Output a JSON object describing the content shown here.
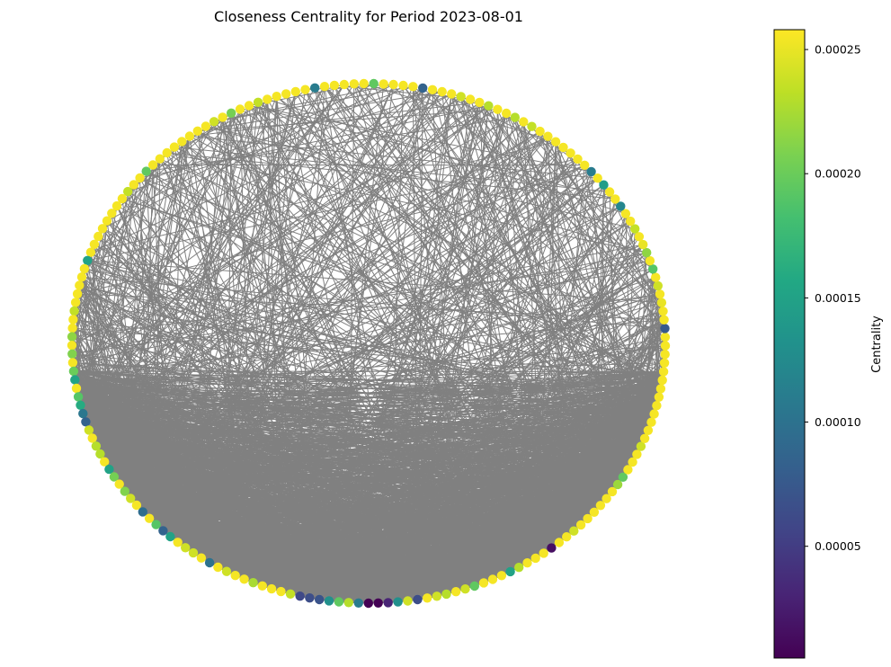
{
  "chart_data": {
    "type": "network",
    "title": "Closeness Centrality for Period 2023-08-01",
    "layout": "circular",
    "node_count": 189,
    "edge_color": "#808080",
    "colormap": "viridis",
    "colorbar": {
      "label": "Centrality",
      "min": 5e-06,
      "max": 0.000258,
      "ticks": [
        "0.00005",
        "0.00010",
        "0.00015",
        "0.00020",
        "0.00025"
      ],
      "tick_values": [
        5e-05,
        0.0001,
        0.00015,
        0.0002,
        0.00025
      ]
    },
    "node_centrality": [
      0.000255,
      0.000255,
      7.5e-05,
      0.000255,
      0.000255,
      0.00025,
      0.000255,
      0.00024,
      0.000255,
      0.00019,
      0.000255,
      0.000215,
      0.00025,
      0.000255,
      0.000235,
      0.000255,
      0.000255,
      0.00012,
      0.000255,
      0.000255,
      0.000145,
      0.000255,
      0.00011,
      0.000255,
      0.000255,
      0.000255,
      0.000255,
      0.000255,
      0.000255,
      0.000255,
      0.000235,
      0.000255,
      0.00023,
      0.000255,
      0.000255,
      0.00023,
      0.000255,
      0.000255,
      0.00024,
      0.000255,
      0.000255,
      0.000255,
      8.5e-05,
      0.000255,
      0.000255,
      0.000255,
      0.000255,
      0.000195,
      0.000255,
      0.000255,
      0.000255,
      0.000255,
      0.000255,
      0.00011,
      0.000255,
      0.000255,
      0.000255,
      0.000255,
      0.000255,
      0.000235,
      0.000255,
      0.000255,
      0.000205,
      0.000255,
      0.00024,
      0.000255,
      0.000255,
      0.000255,
      0.000255,
      0.000255,
      0.000255,
      0.000255,
      0.000255,
      0.000195,
      0.000255,
      0.000255,
      0.000235,
      0.000255,
      0.000255,
      0.000255,
      0.000255,
      0.000255,
      0.000255,
      0.000255,
      0.000255,
      0.00015,
      0.000255,
      0.000255,
      0.000255,
      0.000255,
      0.000255,
      0.000235,
      0.000255,
      0.000255,
      0.000215,
      0.000255,
      0.00021,
      0.000255,
      0.0002,
      0.00015,
      0.000255,
      0.00019,
      0.00016,
      0.000105,
      8.5e-05,
      0.00024,
      0.000255,
      0.00023,
      0.00023,
      0.000255,
      0.00015,
      0.000205,
      0.000255,
      0.00021,
      0.00024,
      0.000255,
      9.5e-05,
      0.000255,
      0.00019,
      8.5e-05,
      0.00015,
      0.000255,
      0.00024,
      0.00024,
      0.000255,
      0.0001,
      0.000255,
      0.00024,
      0.000255,
      0.000255,
      0.000225,
      0.000255,
      0.000255,
      0.000255,
      0.000235,
      6e-05,
      6.5e-05,
      7e-05,
      0.00013,
      0.000195,
      0.00023,
      0.00011,
      5e-06,
      5e-06,
      3e-05,
      0.00013,
      0.00024,
      6.5e-05,
      0.000255,
      0.00024,
      0.00023,
      0.000255,
      0.00024,
      0.000195,
      0.000255,
      0.000255,
      0.000255,
      0.00015,
      0.00023,
      0.000255,
      0.000255,
      0.000255,
      1.5e-05,
      0.000255,
      0.000255,
      0.00024,
      0.000255,
      0.000255,
      0.000255,
      0.000255,
      0.000255,
      0.000255,
      0.00022,
      0.000195,
      0.000255,
      0.000255,
      0.000255,
      0.00024,
      0.000255,
      0.000255,
      0.000255,
      0.000255,
      0.000255,
      0.000255,
      0.000255,
      0.000255,
      0.000255,
      0.000255,
      0.000255
    ]
  }
}
